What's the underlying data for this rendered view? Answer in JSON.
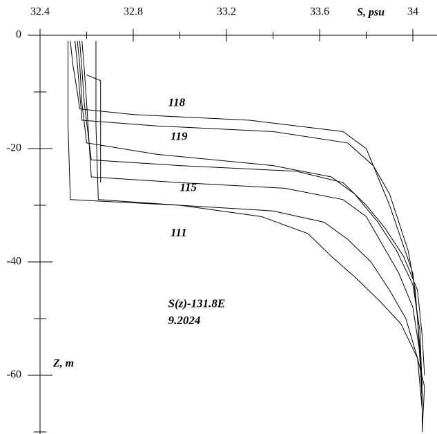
{
  "chart_data": {
    "type": "line",
    "xlabel": "S, psu",
    "ylabel": "Z, m",
    "xlim": [
      32.4,
      34.1
    ],
    "ylim": [
      -70,
      0
    ],
    "x_ticks": [
      32.4,
      32.8,
      33.2,
      33.6,
      34
    ],
    "x_tick_labels": [
      "32.4",
      "32.8",
      "33.2",
      "33.6",
      "34"
    ],
    "x_minor_ticks": [
      32.6,
      33.0,
      33.4,
      33.8
    ],
    "y_ticks": [
      0,
      -20,
      -40,
      -60
    ],
    "y_tick_labels": [
      "0",
      "-20",
      "-40",
      "-60"
    ],
    "y_minor_ticks": [
      -10,
      -30,
      -50,
      -70
    ],
    "annotations": [
      {
        "text": "118",
        "at": [
          32.95,
          -12
        ]
      },
      {
        "text": "119",
        "at": [
          32.96,
          -18
        ]
      },
      {
        "text": "115",
        "at": [
          33.0,
          -27
        ]
      },
      {
        "text": "111",
        "at": [
          32.96,
          -35
        ]
      },
      {
        "text": "S(z)-131.8E",
        "at": [
          32.95,
          -47.5
        ]
      },
      {
        "text": "9.2024",
        "at": [
          32.95,
          -50.5
        ]
      }
    ],
    "series": [
      {
        "x": [
          32.53,
          32.54,
          32.56,
          32.57,
          32.8,
          33.3,
          33.7,
          33.8,
          33.85,
          33.9,
          33.95,
          34.0,
          34.02,
          34.03,
          34.04,
          34.04
        ],
        "y": [
          -1,
          -5,
          -10,
          -13,
          -14,
          -15,
          -17,
          -20,
          -25,
          -30,
          -36,
          -42,
          -50,
          -57,
          -63,
          -70
        ]
      },
      {
        "x": [
          32.55,
          32.56,
          32.57,
          32.58,
          32.9,
          33.4,
          33.72,
          33.83,
          33.9,
          33.94,
          33.98,
          34.01,
          34.03,
          34.04
        ],
        "y": [
          -1,
          -5,
          -10,
          -15,
          -16,
          -17,
          -19,
          -23,
          -28,
          -33,
          -38,
          -45,
          -55,
          -65
        ]
      },
      {
        "x": [
          32.56,
          32.57,
          32.58,
          32.6,
          32.9,
          33.4,
          33.65,
          33.75,
          33.85,
          33.93,
          34.0,
          34.03,
          34.04
        ],
        "y": [
          -1,
          -5,
          -12,
          -19,
          -21,
          -23,
          -25,
          -28,
          -33,
          -38,
          -44,
          -52,
          -62
        ]
      },
      {
        "x": [
          32.57,
          32.58,
          32.59,
          32.62,
          33.0,
          33.5,
          33.7,
          33.8,
          33.88,
          33.96,
          34.02,
          34.04,
          34.05
        ],
        "y": [
          -1,
          -6,
          -12,
          -22,
          -23,
          -24,
          -26,
          -30,
          -34,
          -39,
          -45,
          -53,
          -60
        ]
      },
      {
        "x": [
          32.58,
          32.59,
          32.6,
          32.62,
          33.0,
          33.45,
          33.7,
          33.8,
          33.87,
          33.94,
          34.0,
          34.03,
          34.04
        ],
        "y": [
          -1,
          -6,
          -12,
          -25,
          -26,
          -27,
          -29,
          -32,
          -37,
          -42,
          -48,
          -56,
          -65
        ]
      },
      {
        "x": [
          32.64,
          32.64,
          32.64,
          32.65,
          33.0,
          33.4,
          33.62,
          33.72,
          33.82,
          33.9,
          33.97,
          34.02,
          34.04
        ],
        "y": [
          -1,
          -8,
          -16,
          -29,
          -30,
          -31,
          -33,
          -36,
          -40,
          -45,
          -50,
          -57,
          -66
        ]
      },
      {
        "x": [
          32.52,
          32.52,
          32.52,
          32.53,
          33.0,
          33.35,
          33.55,
          33.65,
          33.76,
          33.86,
          33.95,
          34.02,
          34.05,
          34.04
        ],
        "y": [
          -1,
          -8,
          -16,
          -29,
          -30,
          -32,
          -35,
          -39,
          -43,
          -47,
          -51,
          -57,
          -62,
          -70
        ]
      },
      {
        "x": [
          32.6,
          32.66,
          32.66,
          32.66
        ],
        "y": [
          -7,
          -8,
          -15,
          -26
        ]
      }
    ]
  }
}
